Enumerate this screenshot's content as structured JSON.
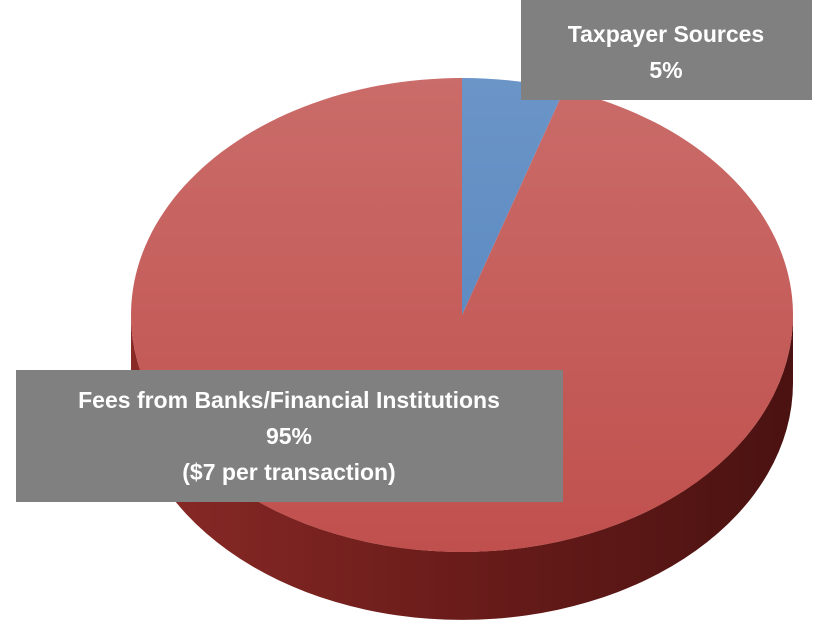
{
  "chart_data": {
    "type": "pie",
    "categories": [
      "Taxpayer Sources",
      "Fees from Banks/Financial Institutions"
    ],
    "values": [
      5,
      95
    ],
    "value_labels": [
      "5%",
      "95%"
    ],
    "colors": [
      "#4f81bd",
      "#c0504d"
    ],
    "annotations": [
      "($7 per transaction)"
    ]
  }
}
